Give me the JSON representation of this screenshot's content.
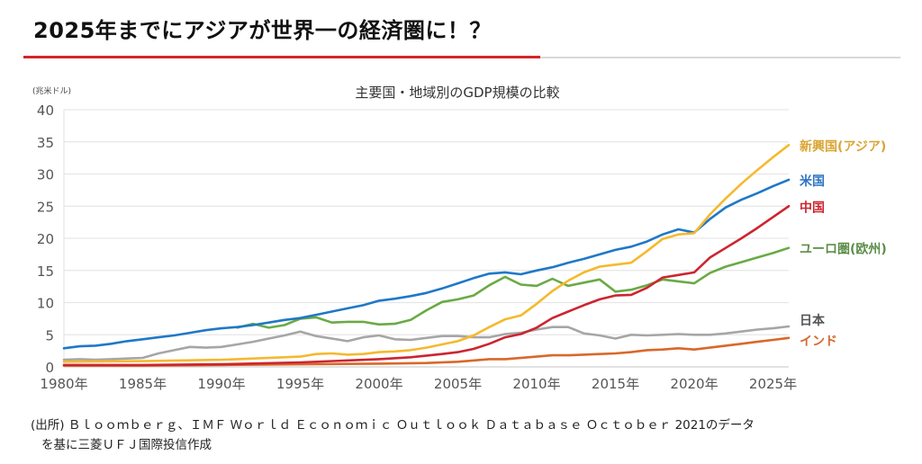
{
  "headline": "2025年までにアジアが世界一の経済圏に！？",
  "source": {
    "line1": "(出所) Ｂｌｏｏｍｂｅｒｇ、ＩＭＦ Ｗｏｒｌｄ Ｅｃｏｎｏｍｉｃ Ｏｕｔｌｏｏｋ Ｄａｔａｂａｓｅ Ｏｃｔｏｂｅｒ 2021のデータ",
    "line2": "を基に三菱ＵＦＪ国際投信作成"
  },
  "chart_data": {
    "type": "line",
    "title": "主要国・地域別のGDP規模の比較",
    "ylabel": "(兆米ドル)",
    "xlabel": "",
    "ylim": [
      0,
      40
    ],
    "xlim": [
      1980,
      2026
    ],
    "yticks": [
      0,
      5,
      10,
      15,
      20,
      25,
      30,
      35,
      40
    ],
    "xticks": [
      1980,
      1985,
      1990,
      1995,
      2000,
      2005,
      2010,
      2015,
      2020,
      2025
    ],
    "xtick_suffix": "年",
    "grid": true,
    "legend": "right-end labels",
    "series": [
      {
        "name": "新興国(アジア)",
        "color": "#f5b92e",
        "label_color": "#d9a534",
        "x": [
          1980,
          1985,
          1990,
          1995,
          1996,
          1997,
          1998,
          1999,
          2000,
          2001,
          2002,
          2003,
          2004,
          2005,
          2006,
          2007,
          2008,
          2009,
          2010,
          2011,
          2012,
          2013,
          2014,
          2015,
          2016,
          2017,
          2018,
          2019,
          2020,
          2021,
          2022,
          2023,
          2024,
          2025,
          2026
        ],
        "values": [
          0.8,
          0.9,
          1.1,
          1.6,
          2.0,
          2.1,
          1.9,
          2.0,
          2.3,
          2.4,
          2.6,
          3.0,
          3.5,
          4.0,
          4.9,
          6.2,
          7.4,
          8.0,
          9.8,
          11.8,
          13.4,
          14.7,
          15.6,
          15.9,
          16.2,
          18.0,
          19.9,
          20.6,
          20.8,
          23.7,
          26.2,
          28.5,
          30.6,
          32.6,
          34.5
        ]
      },
      {
        "name": "米国",
        "color": "#1f78c8",
        "label_color": "#2e74c0",
        "x": [
          1980,
          1981,
          1982,
          1983,
          1984,
          1985,
          1986,
          1987,
          1988,
          1989,
          1990,
          1991,
          1992,
          1993,
          1994,
          1995,
          1996,
          1997,
          1998,
          1999,
          2000,
          2001,
          2002,
          2003,
          2004,
          2005,
          2006,
          2007,
          2008,
          2009,
          2010,
          2011,
          2012,
          2013,
          2014,
          2015,
          2016,
          2017,
          2018,
          2019,
          2020,
          2021,
          2022,
          2023,
          2024,
          2025,
          2026
        ],
        "values": [
          2.9,
          3.2,
          3.3,
          3.6,
          4.0,
          4.3,
          4.6,
          4.9,
          5.3,
          5.7,
          6.0,
          6.2,
          6.5,
          6.9,
          7.3,
          7.6,
          8.1,
          8.6,
          9.1,
          9.6,
          10.3,
          10.6,
          11.0,
          11.5,
          12.2,
          13.0,
          13.8,
          14.5,
          14.7,
          14.4,
          15.0,
          15.5,
          16.2,
          16.8,
          17.5,
          18.2,
          18.7,
          19.5,
          20.6,
          21.4,
          20.9,
          23.0,
          24.8,
          26.0,
          27.0,
          28.1,
          29.1
        ]
      },
      {
        "name": "中国",
        "color": "#cc2530",
        "label_color": "#cc2530",
        "x": [
          1980,
          1985,
          1990,
          1995,
          2000,
          2002,
          2004,
          2005,
          2006,
          2007,
          2008,
          2009,
          2010,
          2011,
          2012,
          2013,
          2014,
          2015,
          2016,
          2017,
          2018,
          2019,
          2020,
          2021,
          2022,
          2023,
          2024,
          2025,
          2026
        ],
        "values": [
          0.3,
          0.3,
          0.4,
          0.7,
          1.2,
          1.5,
          2.0,
          2.3,
          2.8,
          3.6,
          4.6,
          5.1,
          6.1,
          7.6,
          8.6,
          9.6,
          10.5,
          11.1,
          11.2,
          12.3,
          13.9,
          14.3,
          14.7,
          17.0,
          18.5,
          20.0,
          21.6,
          23.3,
          25.0
        ]
      },
      {
        "name": "ユーロ圏(欧州)",
        "color": "#6aaa45",
        "label_color": "#5d8d48",
        "x": [
          1991,
          1992,
          1993,
          1994,
          1995,
          1996,
          1997,
          1998,
          1999,
          2000,
          2001,
          2002,
          2003,
          2004,
          2005,
          2006,
          2007,
          2008,
          2009,
          2010,
          2011,
          2012,
          2013,
          2014,
          2015,
          2016,
          2017,
          2018,
          2019,
          2020,
          2021,
          2022,
          2023,
          2024,
          2025,
          2026
        ],
        "values": [
          6.1,
          6.7,
          6.1,
          6.5,
          7.5,
          7.7,
          6.9,
          7.0,
          7.0,
          6.6,
          6.7,
          7.3,
          8.8,
          10.1,
          10.5,
          11.1,
          12.7,
          14.0,
          12.8,
          12.6,
          13.7,
          12.6,
          13.1,
          13.6,
          11.7,
          12.0,
          12.7,
          13.6,
          13.3,
          13.0,
          14.6,
          15.6,
          16.3,
          17.0,
          17.7,
          18.5
        ]
      },
      {
        "name": "日本",
        "color": "#a6a6a6",
        "label_color": "#555555",
        "x": [
          1980,
          1981,
          1982,
          1983,
          1984,
          1985,
          1986,
          1987,
          1988,
          1989,
          1990,
          1991,
          1992,
          1993,
          1994,
          1995,
          1996,
          1997,
          1998,
          1999,
          2000,
          2001,
          2002,
          2003,
          2004,
          2005,
          2006,
          2007,
          2008,
          2009,
          2010,
          2011,
          2012,
          2013,
          2014,
          2015,
          2016,
          2017,
          2018,
          2019,
          2020,
          2021,
          2022,
          2023,
          2024,
          2025,
          2026
        ],
        "values": [
          1.1,
          1.2,
          1.1,
          1.2,
          1.3,
          1.4,
          2.1,
          2.6,
          3.1,
          3.0,
          3.1,
          3.5,
          3.9,
          4.4,
          4.9,
          5.5,
          4.8,
          4.4,
          4.0,
          4.6,
          4.9,
          4.3,
          4.2,
          4.5,
          4.8,
          4.8,
          4.6,
          4.6,
          5.1,
          5.3,
          5.8,
          6.2,
          6.2,
          5.2,
          4.9,
          4.4,
          5.0,
          4.9,
          5.0,
          5.1,
          5.0,
          5.0,
          5.2,
          5.5,
          5.8,
          6.0,
          6.3
        ]
      },
      {
        "name": "インド",
        "color": "#d9682a",
        "label_color": "#d46a2e",
        "x": [
          1980,
          1985,
          1990,
          1995,
          2000,
          2003,
          2005,
          2007,
          2008,
          2010,
          2011,
          2012,
          2013,
          2014,
          2015,
          2016,
          2017,
          2018,
          2019,
          2020,
          2021,
          2022,
          2023,
          2024,
          2025,
          2026
        ],
        "values": [
          0.2,
          0.2,
          0.3,
          0.4,
          0.5,
          0.6,
          0.8,
          1.2,
          1.2,
          1.6,
          1.8,
          1.8,
          1.9,
          2.0,
          2.1,
          2.3,
          2.6,
          2.7,
          2.9,
          2.7,
          3.0,
          3.3,
          3.6,
          3.9,
          4.2,
          4.5
        ]
      }
    ]
  }
}
